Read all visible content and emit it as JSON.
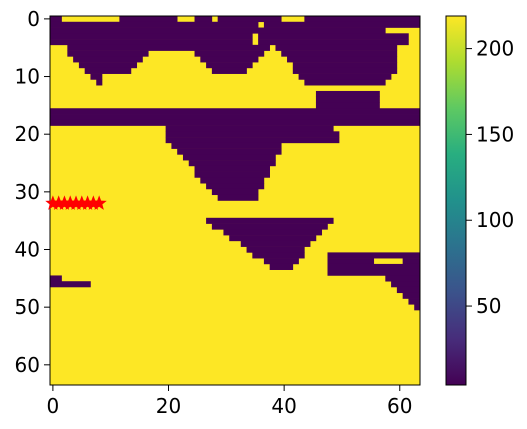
{
  "chart_data": {
    "type": "heatmap",
    "title": "",
    "xlabel": "",
    "ylabel": "",
    "grid_size": 64,
    "xlim": [
      -0.5,
      63.5
    ],
    "ylim": [
      63.5,
      -0.5
    ],
    "x_ticks": [
      0,
      20,
      40,
      60
    ],
    "y_ticks": [
      0,
      10,
      20,
      30,
      40,
      50,
      60
    ],
    "grid": false,
    "colormap": "viridis",
    "colorbar": {
      "range": [
        4,
        219
      ],
      "ticks": [
        50,
        100,
        150,
        200
      ]
    },
    "values": {
      "low": 4,
      "high": 219
    },
    "low_value_regions": [
      {
        "row_start": 0,
        "row_end": 0,
        "col_start": 0,
        "col_end": 63,
        "note": "top strip mostly dark with small yellow gaps"
      },
      {
        "row_start": 1,
        "row_end": 14,
        "col_start": 0,
        "col_end": 63,
        "note": "upper dark band with yellow bumps"
      },
      {
        "row_start": 16,
        "row_end": 18,
        "col_start": 0,
        "col_end": 63,
        "note": "full-width dark band"
      },
      {
        "row_start": 19,
        "row_end": 31,
        "col_start": 20,
        "col_end": 40,
        "note": "dark V-shaped trough"
      },
      {
        "row_start": 35,
        "row_end": 43,
        "col_start": 30,
        "col_end": 48,
        "note": "lower dark triangle"
      },
      {
        "row_start": 45,
        "row_end": 46,
        "col_start": 0,
        "col_end": 6,
        "note": "small dark bar on left"
      },
      {
        "row_start": 41,
        "row_end": 50,
        "col_start": 48,
        "col_end": 63,
        "note": "dark wedge on right"
      }
    ],
    "markers": {
      "symbol": "star",
      "color": "#ff0000",
      "points": [
        [
          0,
          32
        ],
        [
          1,
          32
        ],
        [
          2,
          32
        ],
        [
          3,
          32
        ],
        [
          4,
          32
        ],
        [
          5,
          32
        ],
        [
          6,
          32
        ],
        [
          7,
          32
        ],
        [
          8,
          32
        ]
      ]
    }
  }
}
